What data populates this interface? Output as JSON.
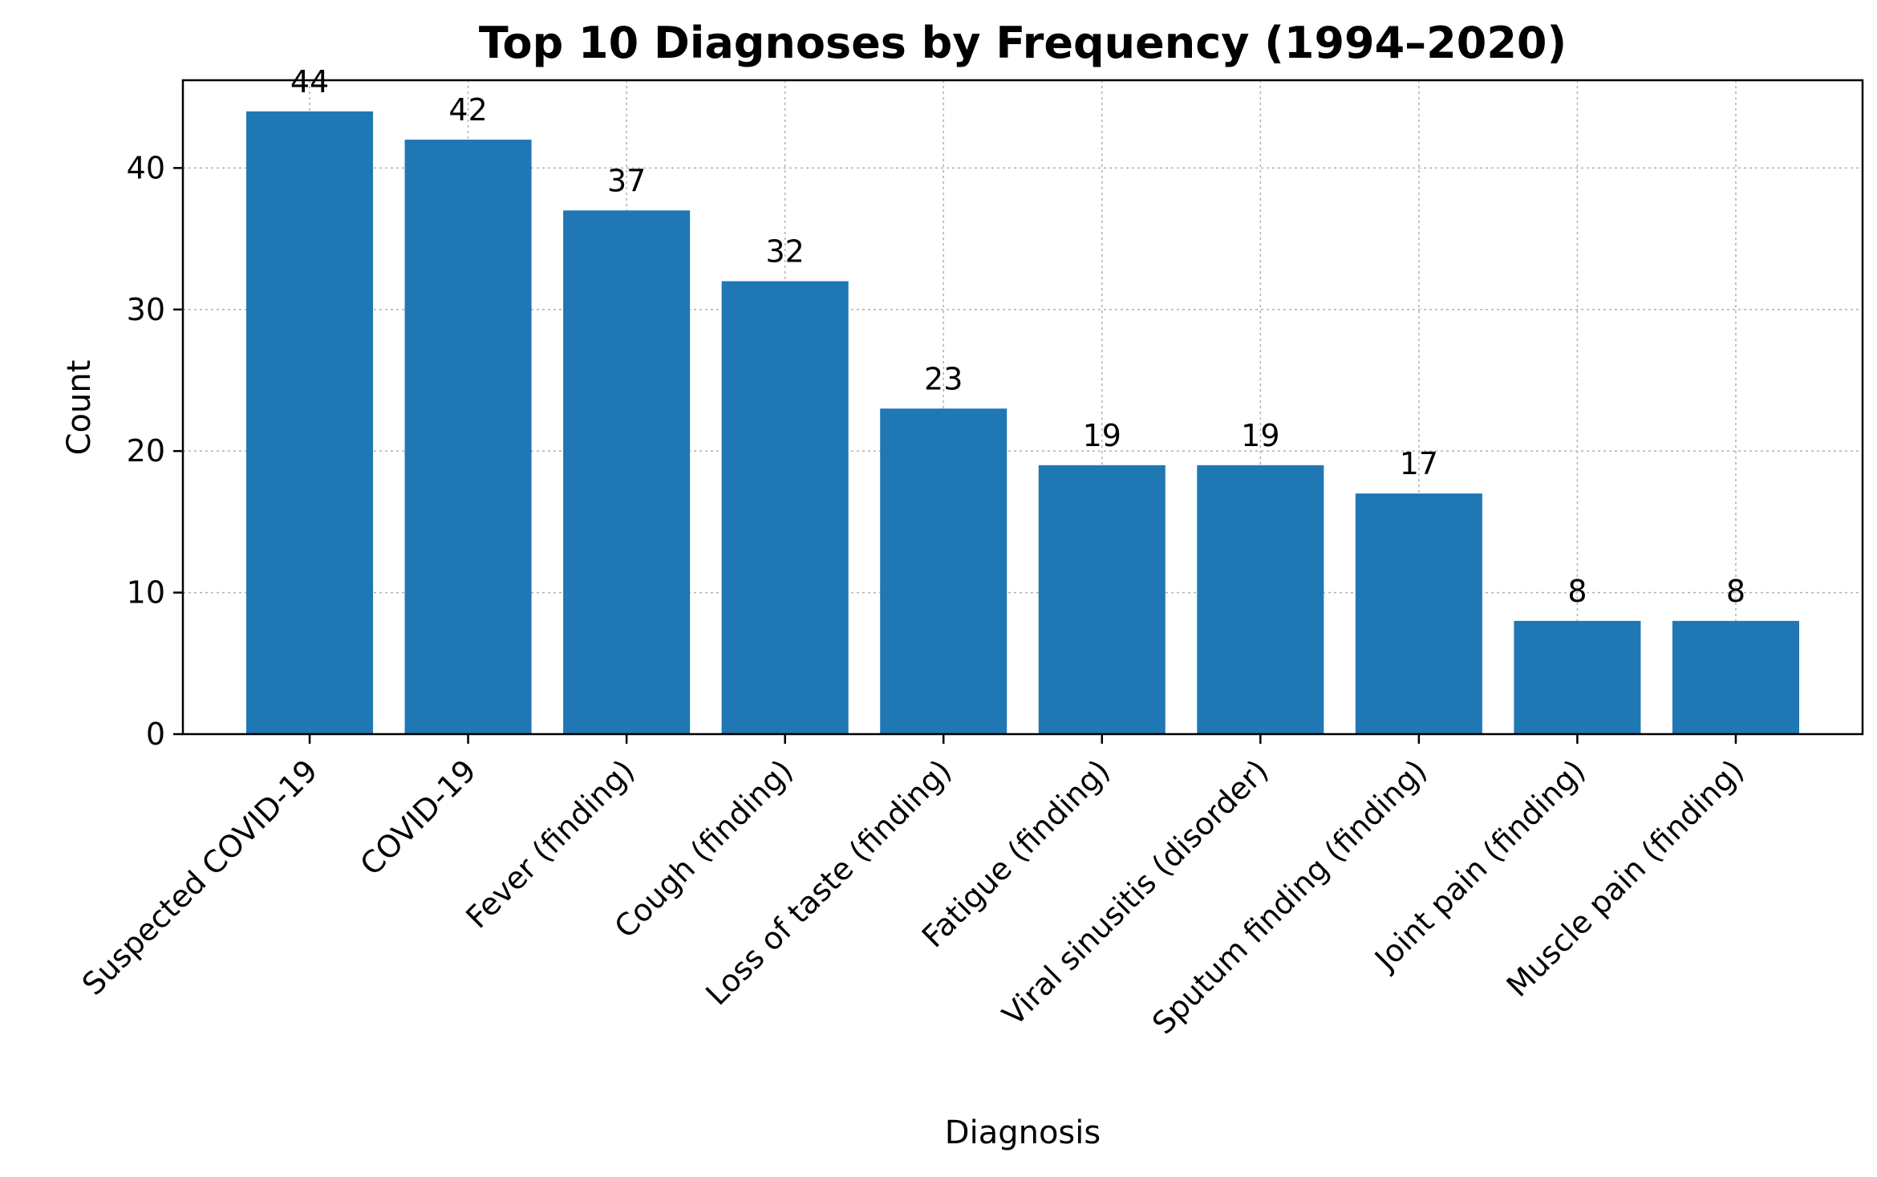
{
  "chart_data": {
    "type": "bar",
    "title": "Top 10 Diagnoses by Frequency (1994–2020)",
    "xlabel": "Diagnosis",
    "ylabel": "Count",
    "categories": [
      "Suspected COVID-19",
      "COVID-19",
      "Fever (finding)",
      "Cough (finding)",
      "Loss of taste (finding)",
      "Fatigue (finding)",
      "Viral sinusitis (disorder)",
      "Sputum finding (finding)",
      "Joint pain (finding)",
      "Muscle pain (finding)"
    ],
    "values": [
      44,
      42,
      37,
      32,
      23,
      19,
      19,
      17,
      8,
      8
    ],
    "ylim": [
      0,
      46.2
    ],
    "yticks": [
      0,
      10,
      20,
      30,
      40
    ],
    "grid": true,
    "bar_color": "#1f77b4"
  }
}
